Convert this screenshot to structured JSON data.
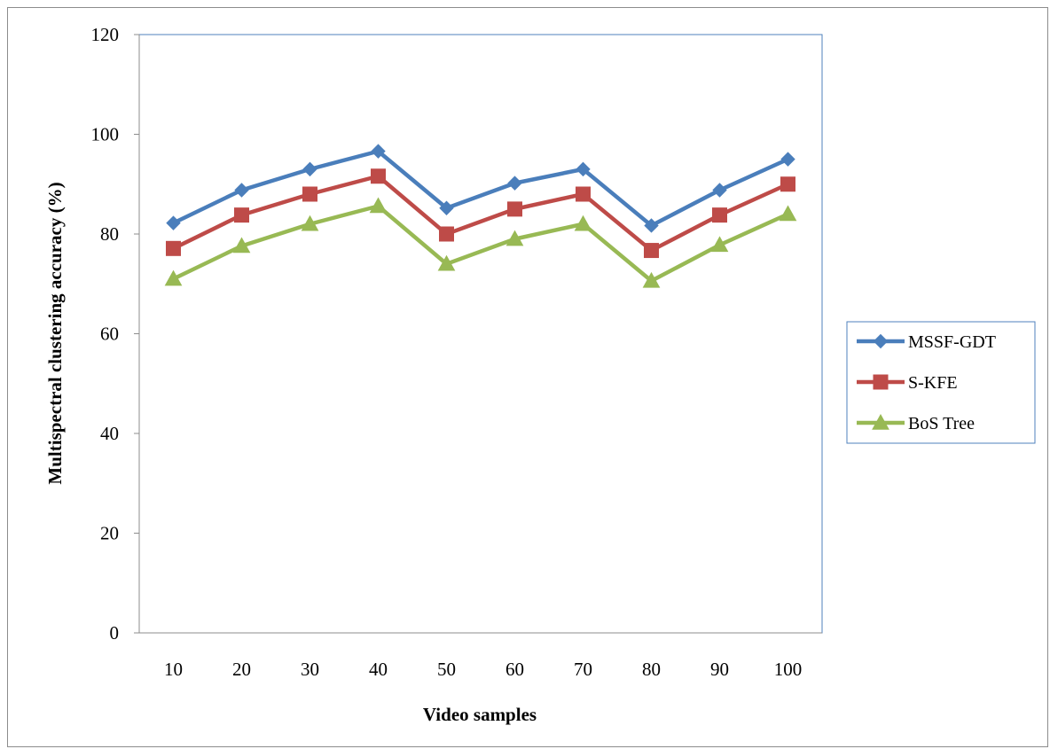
{
  "chart_data": {
    "type": "line",
    "title": "",
    "xlabel": "Video samples",
    "ylabel": "Multispectral clustering accuracy (%)",
    "categories": [
      "10",
      "20",
      "30",
      "40",
      "50",
      "60",
      "70",
      "80",
      "90",
      "100"
    ],
    "ylim": [
      0,
      120
    ],
    "yticks": [
      "0",
      "20",
      "40",
      "60",
      "80",
      "100",
      "120"
    ],
    "grid": false,
    "legend_position": "right",
    "series": [
      {
        "name": "MSSF-GDT",
        "color": "#4a7ebb",
        "marker": "diamond",
        "values": [
          82.2,
          88.8,
          93.0,
          96.6,
          85.2,
          90.2,
          93.0,
          81.7,
          88.8,
          95.0
        ]
      },
      {
        "name": "S-KFE",
        "color": "#be4b48",
        "marker": "square",
        "values": [
          77.1,
          83.8,
          88.0,
          91.6,
          80.0,
          85.0,
          88.0,
          76.7,
          83.8,
          90.0
        ]
      },
      {
        "name": "BoS Tree",
        "color": "#98b954",
        "marker": "triangle",
        "values": [
          71.0,
          77.6,
          82.0,
          85.6,
          74.0,
          79.0,
          82.0,
          70.6,
          77.8,
          84.0
        ]
      }
    ]
  }
}
